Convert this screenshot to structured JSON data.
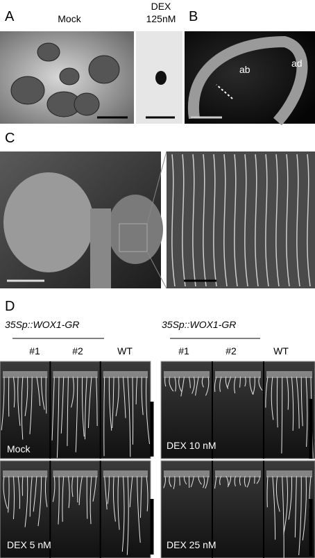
{
  "panel_a": {
    "label": "A",
    "mock": "Mock",
    "dex": "DEX",
    "dex_conc": "125nM"
  },
  "panel_b": {
    "label": "B",
    "ad": "ad",
    "ab": "ab"
  },
  "panel_c": {
    "label": "C"
  },
  "panel_d": {
    "label": "D",
    "groups": [
      {
        "genotype": "35Sp::WOX1-GR",
        "lanes": [
          "#1",
          "#2",
          "WT"
        ]
      },
      {
        "genotype": "35Sp::WOX1-GR",
        "lanes": [
          "#1",
          "#2",
          "WT"
        ]
      }
    ],
    "plates": [
      "Mock",
      "DEX 10 nM",
      "DEX 5 nM",
      "DEX 25 nM"
    ]
  }
}
